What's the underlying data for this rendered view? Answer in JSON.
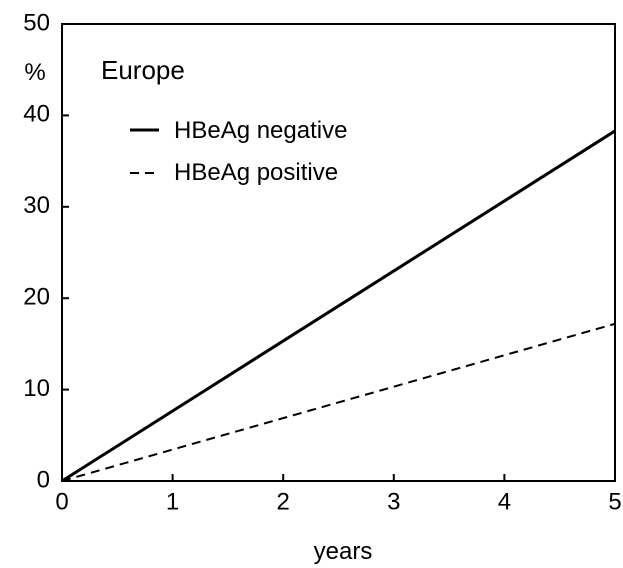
{
  "chart_data": {
    "type": "line",
    "title": "Europe",
    "xlabel": "years",
    "ylabel": "%",
    "x": [
      0,
      5
    ],
    "xlim": [
      0,
      5
    ],
    "ylim": [
      0,
      50
    ],
    "xticks": [
      "0",
      "1",
      "2",
      "3",
      "4",
      "5"
    ],
    "yticks": [
      "0",
      "10",
      "20",
      "30",
      "40",
      "50"
    ],
    "grid": false,
    "legend_position": "top-left",
    "series": [
      {
        "name": "HBeAg negative",
        "style": "solid",
        "values": [
          0,
          38.3
        ]
      },
      {
        "name": "HBeAg positive",
        "style": "dashed",
        "values": [
          0,
          17.2
        ]
      }
    ]
  }
}
